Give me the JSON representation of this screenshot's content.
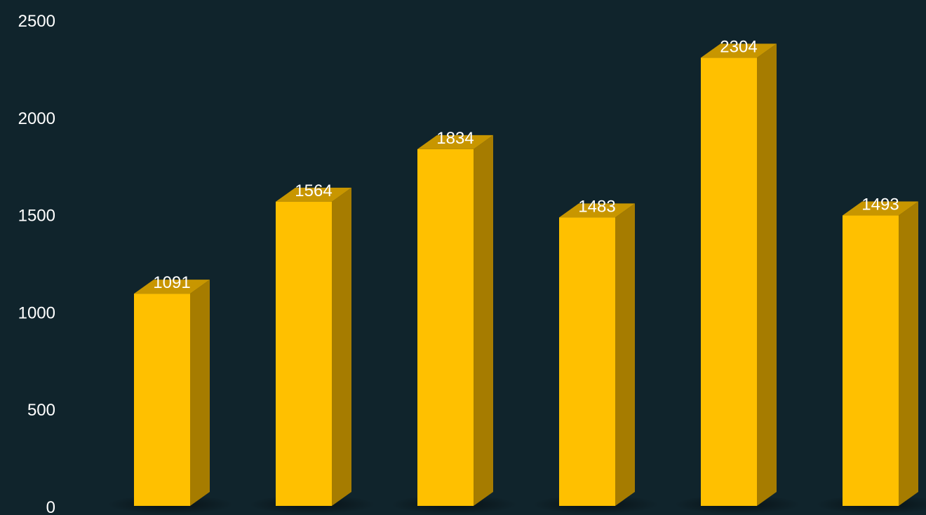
{
  "chart_data": {
    "type": "bar",
    "style": "3d-column",
    "categories": [
      "",
      "",
      "",
      "",
      "",
      ""
    ],
    "values": [
      1091,
      1564,
      1834,
      1483,
      2304,
      1493
    ],
    "data_labels": [
      "1091",
      "1564",
      "1834",
      "1483",
      "2304",
      "1493"
    ],
    "y_ticks": [
      "0",
      "500",
      "1000",
      "1500",
      "2000",
      "2500"
    ],
    "y_tick_values": [
      0,
      500,
      1000,
      1500,
      2000,
      2500
    ],
    "ylim": [
      0,
      2500
    ],
    "title": "",
    "xlabel": "",
    "ylabel": "",
    "grid": false,
    "legend": "none",
    "colors": {
      "background": "#10242c",
      "bar_front": "#ffc000",
      "bar_side": "#a67c00",
      "bar_top": "#c89600",
      "text": "#ffffff"
    }
  }
}
